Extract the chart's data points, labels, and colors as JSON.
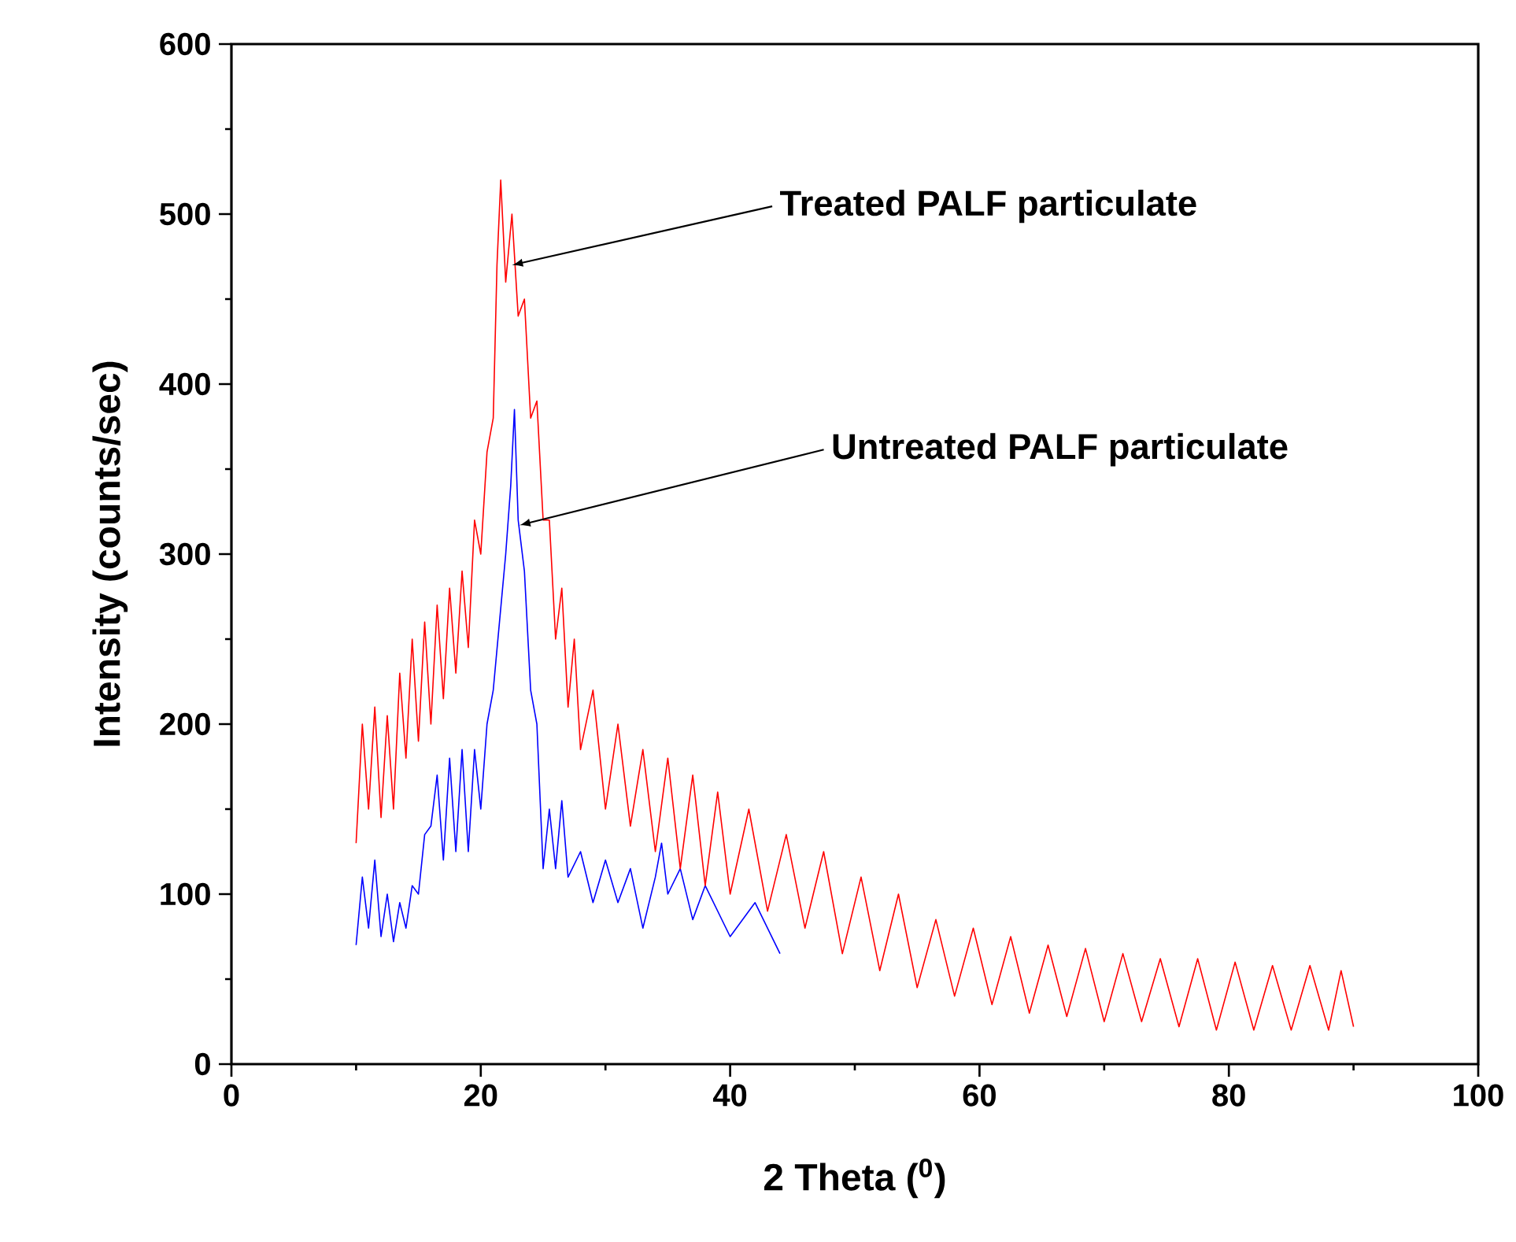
{
  "chart_data": {
    "type": "line",
    "xlabel": "2 Theta ($^{0}$)",
    "ylabel": "Intensity (counts/sec)",
    "xlim": [
      0,
      100
    ],
    "ylim": [
      0,
      600
    ],
    "xticks": [
      0,
      20,
      40,
      60,
      80,
      100
    ],
    "yticks": [
      0,
      100,
      200,
      300,
      400,
      500,
      600
    ],
    "grid": false,
    "marker": "none",
    "line_style": "solid",
    "series": [
      {
        "color": "#0000ff",
        "x": [
          10,
          10.5,
          11,
          11.5,
          12,
          12.5,
          13,
          13.5,
          14,
          14.5,
          15,
          15.5,
          16,
          16.5,
          17,
          17.5,
          18,
          18.5,
          19,
          19.5,
          20,
          20.5,
          21,
          21.5,
          22,
          22.4,
          22.7,
          23,
          23.5,
          24,
          24.5,
          25,
          25.5,
          26,
          26.5,
          27,
          28,
          29,
          30,
          31,
          32,
          33,
          34,
          34.5,
          35,
          36,
          37,
          38,
          40,
          42,
          44
        ],
        "values": [
          70,
          110,
          80,
          120,
          75,
          100,
          72,
          95,
          80,
          105,
          100,
          135,
          140,
          170,
          120,
          180,
          125,
          185,
          125,
          185,
          150,
          200,
          220,
          260,
          300,
          340,
          385,
          320,
          290,
          220,
          200,
          115,
          150,
          115,
          155,
          110,
          125,
          95,
          120,
          95,
          115,
          80,
          110,
          130,
          100,
          115,
          85,
          105,
          75,
          95,
          65
        ]
      },
      {
        "color": "#ff0000",
        "x": [
          10,
          10.5,
          11,
          11.5,
          12,
          12.5,
          13,
          13.5,
          14,
          14.5,
          15,
          15.5,
          16,
          16.5,
          17,
          17.5,
          18,
          18.5,
          19,
          19.5,
          20,
          20.5,
          21,
          21.3,
          21.6,
          22,
          22.5,
          23,
          23.5,
          24,
          24.5,
          25,
          25.5,
          26,
          26.5,
          27,
          27.5,
          28,
          29,
          30,
          31,
          32,
          33,
          34,
          35,
          36,
          37,
          38,
          39,
          40,
          41.5,
          43,
          44.5,
          46,
          47.5,
          49,
          50.5,
          52,
          53.5,
          55,
          56.5,
          58,
          59.5,
          61,
          62.5,
          64,
          65.5,
          67,
          68.5,
          70,
          71.5,
          73,
          74.5,
          76,
          77.5,
          79,
          80.5,
          82,
          83.5,
          85,
          86.5,
          88,
          89,
          90
        ],
        "values": [
          130,
          200,
          150,
          210,
          145,
          205,
          150,
          230,
          180,
          250,
          190,
          260,
          200,
          270,
          215,
          280,
          230,
          290,
          245,
          320,
          300,
          360,
          380,
          470,
          520,
          460,
          500,
          440,
          450,
          380,
          390,
          320,
          320,
          250,
          280,
          210,
          250,
          185,
          220,
          150,
          200,
          140,
          185,
          125,
          180,
          115,
          170,
          105,
          160,
          100,
          150,
          90,
          135,
          80,
          125,
          65,
          110,
          55,
          100,
          45,
          85,
          40,
          80,
          35,
          75,
          30,
          70,
          28,
          68,
          25,
          65,
          25,
          62,
          22,
          62,
          20,
          60,
          20,
          58,
          20,
          58,
          20,
          55,
          22
        ]
      }
    ],
    "annotations": [
      {
        "text": "Treated PALF particulate",
        "x": 22.5,
        "y": 470
      },
      {
        "text": "Untreated PALF particulate",
        "x": 23.1,
        "y": 317
      }
    ]
  }
}
